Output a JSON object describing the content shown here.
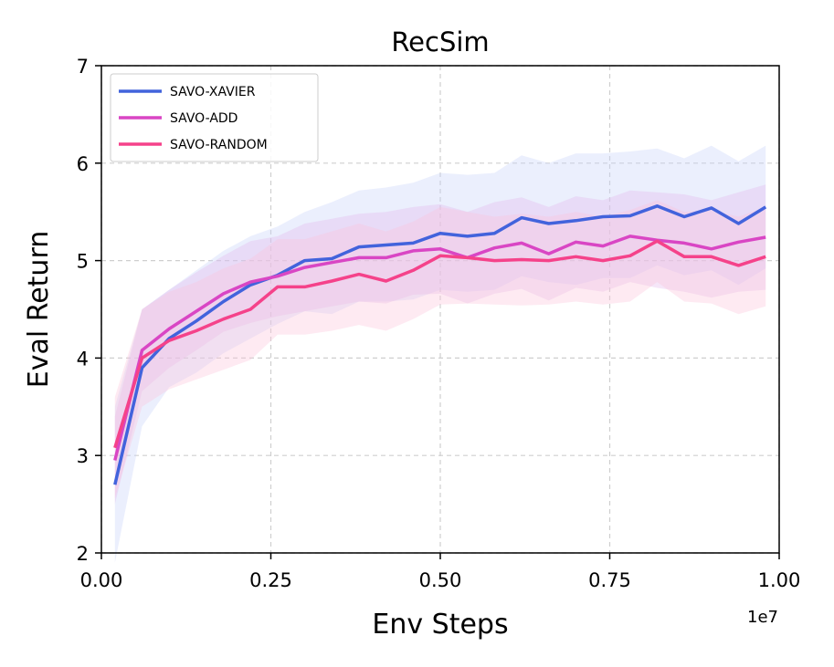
{
  "chart_data": {
    "type": "line",
    "title": "RecSim",
    "xlabel": "Env Steps",
    "ylabel": "Eval Return",
    "x_offset_label": "1e7",
    "xlim": [
      0.0,
      1.0
    ],
    "ylim": [
      2,
      7
    ],
    "xticks": [
      "0.00",
      "0.25",
      "0.50",
      "0.75",
      "1.00"
    ],
    "yticks": [
      "2",
      "3",
      "4",
      "5",
      "6",
      "7"
    ],
    "grid": true,
    "legend_position": "top-left",
    "x": [
      0.02,
      0.06,
      0.1,
      0.14,
      0.18,
      0.22,
      0.26,
      0.3,
      0.34,
      0.38,
      0.42,
      0.46,
      0.5,
      0.54,
      0.58,
      0.62,
      0.66,
      0.7,
      0.74,
      0.78,
      0.82,
      0.86,
      0.9,
      0.94,
      0.98
    ],
    "series": [
      {
        "name": "SAVO-XAVIER",
        "color": "#4263dc",
        "band_color": "#c5d2fa",
        "values": [
          2.7,
          3.9,
          4.2,
          4.38,
          4.58,
          4.75,
          4.85,
          5.0,
          5.02,
          5.14,
          5.16,
          5.18,
          5.28,
          5.25,
          5.28,
          5.44,
          5.38,
          5.41,
          5.45,
          5.46,
          5.56,
          5.45,
          5.54,
          5.38,
          5.55
        ],
        "upper": [
          3.5,
          4.5,
          4.7,
          4.9,
          5.1,
          5.25,
          5.35,
          5.5,
          5.6,
          5.72,
          5.75,
          5.8,
          5.9,
          5.88,
          5.9,
          6.08,
          6.0,
          6.1,
          6.1,
          6.12,
          6.15,
          6.05,
          6.18,
          6.02,
          6.18
        ],
        "lower": [
          1.9,
          3.3,
          3.7,
          3.85,
          4.05,
          4.2,
          4.35,
          4.48,
          4.45,
          4.58,
          4.58,
          4.6,
          4.7,
          4.68,
          4.7,
          4.84,
          4.78,
          4.75,
          4.82,
          4.82,
          4.95,
          4.85,
          4.9,
          4.75,
          4.92
        ]
      },
      {
        "name": "SAVO-ADD",
        "color": "#d946c4",
        "band_color": "#e2b8ec",
        "values": [
          2.95,
          4.08,
          4.3,
          4.48,
          4.66,
          4.78,
          4.84,
          4.93,
          4.98,
          5.03,
          5.03,
          5.1,
          5.12,
          5.03,
          5.13,
          5.18,
          5.07,
          5.19,
          5.15,
          5.25,
          5.21,
          5.18,
          5.12,
          5.19,
          5.24
        ],
        "upper": [
          3.4,
          4.5,
          4.7,
          4.88,
          5.05,
          5.2,
          5.25,
          5.38,
          5.43,
          5.48,
          5.5,
          5.55,
          5.58,
          5.5,
          5.6,
          5.65,
          5.55,
          5.66,
          5.62,
          5.72,
          5.7,
          5.68,
          5.62,
          5.7,
          5.78
        ],
        "lower": [
          2.5,
          3.66,
          3.9,
          4.08,
          4.27,
          4.36,
          4.43,
          4.48,
          4.53,
          4.58,
          4.56,
          4.65,
          4.66,
          4.56,
          4.66,
          4.71,
          4.59,
          4.72,
          4.68,
          4.78,
          4.72,
          4.68,
          4.62,
          4.68,
          4.7
        ]
      },
      {
        "name": "SAVO-RANDOM",
        "color": "#f5428a",
        "band_color": "#fbc3d9",
        "values": [
          3.08,
          4.0,
          4.18,
          4.28,
          4.4,
          4.5,
          4.73,
          4.73,
          4.79,
          4.86,
          4.79,
          4.9,
          5.05,
          5.03,
          5.0,
          5.01,
          5.0,
          5.04,
          5.0,
          5.05,
          5.2,
          5.04,
          5.04,
          4.95,
          5.04
        ],
        "upper": [
          3.6,
          4.5,
          4.68,
          4.78,
          4.92,
          5.02,
          5.22,
          5.22,
          5.3,
          5.38,
          5.3,
          5.4,
          5.55,
          5.5,
          5.45,
          5.48,
          5.45,
          5.5,
          5.45,
          5.52,
          5.62,
          5.5,
          5.52,
          5.45,
          5.55
        ],
        "lower": [
          2.56,
          3.5,
          3.68,
          3.78,
          3.88,
          3.98,
          4.24,
          4.24,
          4.28,
          4.34,
          4.28,
          4.4,
          4.55,
          4.56,
          4.55,
          4.54,
          4.55,
          4.58,
          4.55,
          4.58,
          4.78,
          4.58,
          4.56,
          4.45,
          4.53
        ]
      }
    ]
  }
}
